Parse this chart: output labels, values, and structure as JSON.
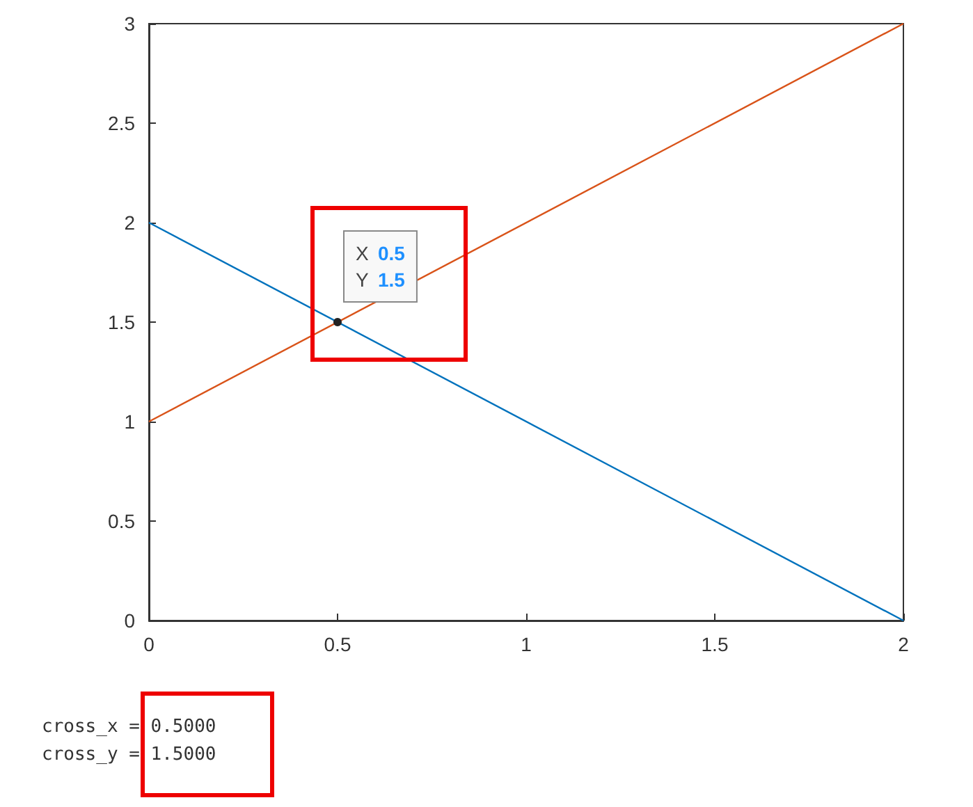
{
  "chart_data": {
    "type": "line",
    "x": [
      0,
      2
    ],
    "series": [
      {
        "color": "#0072bd",
        "values": [
          2,
          0
        ]
      },
      {
        "color": "#d95319",
        "values": [
          1,
          3
        ]
      }
    ],
    "xlim": [
      0,
      2
    ],
    "xticks": [
      0,
      0.5,
      1,
      1.5,
      2
    ],
    "ylim": [
      0,
      3
    ],
    "yticks": [
      0,
      0.5,
      1,
      1.5,
      2,
      2.5,
      3
    ],
    "grid": false,
    "marker": "none",
    "line_style": "solid",
    "annotations": [
      {
        "text": "X 0.5\nY 1.5",
        "x": 0.5,
        "y": 1.5
      },
      "cross_x = 0.5000",
      "cross_y = 1.5000"
    ]
  }
}
